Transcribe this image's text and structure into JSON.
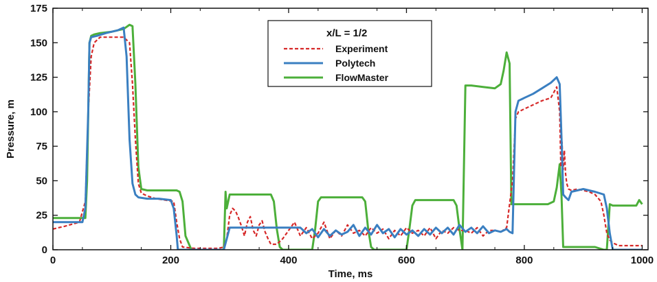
{
  "colors": {
    "experiment": "#d62828",
    "polytech": "#3a7fc1",
    "flowmaster": "#4caf3a",
    "axis": "#111111"
  },
  "chart_data": {
    "type": "line",
    "title": "",
    "xlabel": "Time, ms",
    "ylabel": "Pressure, m",
    "xlim": [
      0,
      1010
    ],
    "ylim": [
      0,
      175
    ],
    "xticks": [
      0,
      200,
      400,
      600,
      800,
      1000
    ],
    "yticks": [
      0,
      25,
      50,
      75,
      100,
      125,
      150,
      175
    ],
    "grid": false,
    "legend": {
      "title": "x/L = 1/2",
      "placement": "top-center",
      "entries": [
        "Experiment",
        "Polytech",
        "FlowMaster"
      ]
    },
    "series": [
      {
        "name": "Experiment",
        "style": "dashed",
        "x": [
          0,
          20,
          45,
          55,
          60,
          65,
          70,
          75,
          80,
          90,
          100,
          120,
          130,
          135,
          140,
          145,
          150,
          160,
          175,
          190,
          205,
          210,
          215,
          220,
          240,
          260,
          280,
          290,
          295,
          300,
          305,
          310,
          315,
          320,
          325,
          330,
          335,
          340,
          345,
          350,
          355,
          360,
          365,
          370,
          380,
          390,
          400,
          410,
          420,
          430,
          440,
          450,
          460,
          470,
          480,
          490,
          500,
          510,
          520,
          530,
          540,
          550,
          560,
          570,
          580,
          590,
          600,
          610,
          620,
          630,
          640,
          650,
          660,
          670,
          680,
          690,
          700,
          710,
          720,
          730,
          740,
          750,
          760,
          770,
          780,
          785,
          790,
          800,
          815,
          830,
          845,
          855,
          860,
          862,
          864,
          866,
          868,
          870,
          872,
          875,
          880,
          890,
          900,
          910,
          920,
          930,
          935,
          940,
          945,
          950,
          960,
          975,
          990,
          1000
        ],
        "y": [
          15,
          17,
          20,
          35,
          100,
          140,
          150,
          152,
          154,
          154,
          154,
          154,
          150,
          120,
          80,
          48,
          41,
          39,
          37,
          36,
          35,
          20,
          8,
          2,
          1,
          1,
          1,
          2,
          8,
          25,
          30,
          28,
          23,
          17,
          10,
          20,
          24,
          14,
          10,
          18,
          21,
          13,
          8,
          4,
          4,
          8,
          14,
          20,
          10,
          16,
          8,
          12,
          20,
          8,
          14,
          10,
          18,
          12,
          14,
          10,
          16,
          12,
          15,
          8,
          14,
          10,
          16,
          12,
          14,
          10,
          16,
          8,
          14,
          12,
          16,
          14,
          14,
          12,
          16,
          10,
          14,
          14,
          13,
          16,
          50,
          95,
          100,
          102,
          105,
          108,
          110,
          118,
          100,
          60,
          78,
          58,
          72,
          55,
          48,
          44,
          43,
          44,
          43,
          42,
          40,
          35,
          25,
          12,
          7,
          5,
          3,
          3,
          3,
          3
        ]
      },
      {
        "name": "Polytech",
        "style": "solid",
        "x": [
          0,
          50,
          55,
          60,
          62,
          65,
          75,
          90,
          110,
          120,
          125,
          130,
          135,
          140,
          145,
          160,
          180,
          200,
          205,
          210,
          212,
          215,
          290,
          300,
          380,
          420,
          430,
          440,
          450,
          460,
          470,
          480,
          490,
          500,
          510,
          520,
          530,
          540,
          550,
          560,
          570,
          580,
          590,
          600,
          610,
          620,
          630,
          640,
          650,
          660,
          670,
          680,
          690,
          700,
          710,
          720,
          730,
          740,
          750,
          760,
          770,
          775,
          780,
          785,
          790,
          800,
          815,
          830,
          845,
          855,
          860,
          864,
          866,
          870,
          875,
          880,
          900,
          920,
          935,
          940,
          945,
          950,
          955,
          960,
          1000
        ],
        "y": [
          20,
          20,
          30,
          100,
          150,
          154,
          155,
          157,
          159,
          161,
          140,
          80,
          48,
          40,
          38,
          37,
          37,
          36,
          30,
          10,
          0,
          0,
          0,
          16,
          16,
          16,
          12,
          15,
          9,
          15,
          10,
          14,
          11,
          13,
          18,
          10,
          16,
          11,
          18,
          12,
          15,
          9,
          15,
          11,
          14,
          10,
          15,
          11,
          16,
          12,
          16,
          11,
          18,
          13,
          16,
          12,
          17,
          12,
          14,
          13,
          15,
          13,
          12,
          100,
          108,
          110,
          113,
          117,
          121,
          125,
          120,
          70,
          40,
          38,
          36,
          42,
          44,
          42,
          40,
          30,
          12,
          0,
          0,
          0,
          0
        ]
      },
      {
        "name": "FlowMaster",
        "style": "solid",
        "x": [
          0,
          55,
          58,
          62,
          65,
          70,
          80,
          100,
          120,
          130,
          135,
          140,
          145,
          150,
          160,
          200,
          210,
          215,
          220,
          225,
          235,
          290,
          293,
          295,
          300,
          370,
          375,
          380,
          385,
          390,
          440,
          445,
          450,
          455,
          460,
          525,
          530,
          535,
          540,
          545,
          600,
          605,
          610,
          615,
          620,
          680,
          685,
          690,
          695,
          700,
          710,
          730,
          750,
          760,
          765,
          770,
          775,
          778,
          780,
          785,
          790,
          800,
          820,
          840,
          850,
          855,
          860,
          863,
          866,
          870,
          875,
          880,
          920,
          935,
          940,
          945,
          950,
          960,
          980,
          990,
          995,
          1000
        ],
        "y": [
          23,
          23,
          50,
          150,
          155,
          156,
          157,
          158,
          160,
          163,
          162,
          120,
          60,
          44,
          43,
          43,
          43,
          42,
          35,
          10,
          0,
          0,
          42,
          30,
          40,
          40,
          35,
          15,
          2,
          0,
          0,
          15,
          35,
          38,
          38,
          38,
          35,
          15,
          2,
          0,
          0,
          15,
          32,
          36,
          36,
          36,
          32,
          15,
          0,
          119,
          119,
          118,
          117,
          120,
          130,
          143,
          135,
          33,
          33,
          33,
          33,
          33,
          33,
          33,
          35,
          45,
          62,
          40,
          2,
          2,
          2,
          2,
          2,
          0,
          0,
          33,
          32,
          32,
          32,
          32,
          36,
          33
        ]
      }
    ]
  }
}
